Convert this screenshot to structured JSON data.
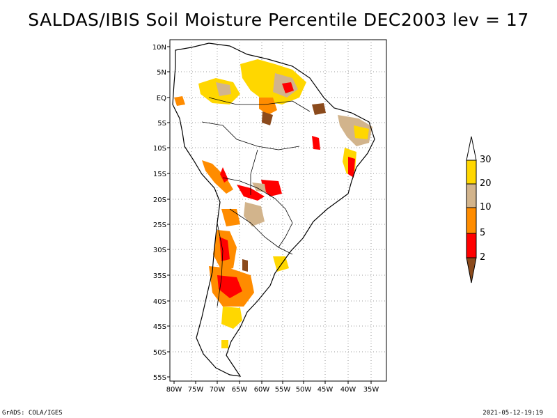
{
  "title": "SALDAS/IBIS Soil Moisture Percentile DEC2003 lev = 17",
  "axes": {
    "lon_ticks": [
      "80W",
      "75W",
      "70W",
      "65W",
      "60W",
      "55W",
      "50W",
      "45W",
      "40W",
      "35W"
    ],
    "lat_ticks": [
      "10N",
      "5N",
      "EQ",
      "5S",
      "10S",
      "15S",
      "20S",
      "25S",
      "30S",
      "35S",
      "40S",
      "45S",
      "50S",
      "55S"
    ]
  },
  "colorbar": {
    "levels": [
      "2",
      "5",
      "10",
      "20",
      "30"
    ],
    "colors": {
      "below_2": "#8b4a1c",
      "2_5": "#ff0000",
      "5_10": "#ff8c00",
      "10_20": "#d2b48c",
      "20_30": "#ffd700",
      "above_30": "#ffffff"
    }
  },
  "footer": {
    "left": "GrADS: COLA/IGES",
    "right": "2021-05-12-19:19"
  }
}
